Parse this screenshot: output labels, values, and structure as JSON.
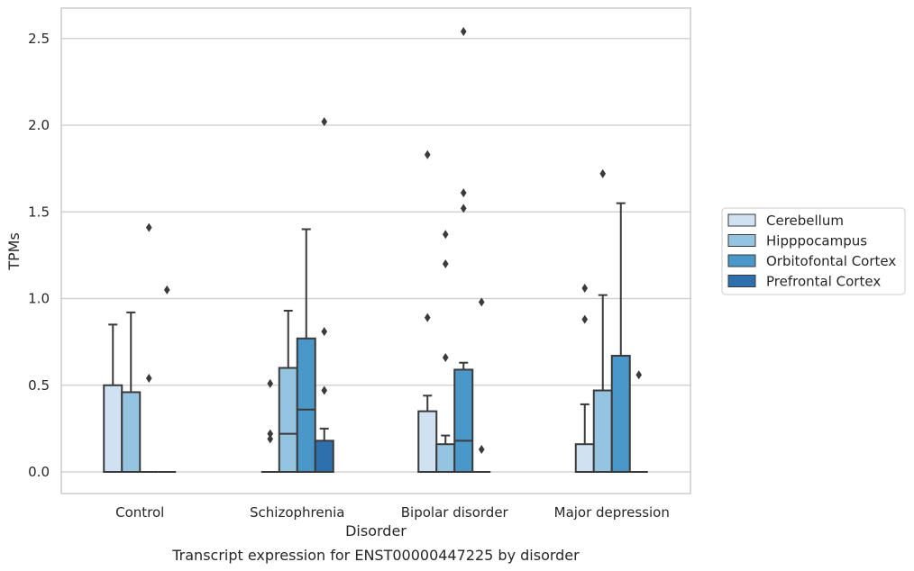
{
  "chart_data": {
    "type": "box",
    "caption": "Transcript expression for ENST00000447225 by disorder",
    "xlabel": "Disorder",
    "ylabel": "TPMs",
    "ylim": [
      -0.12,
      2.67
    ],
    "yticks": [
      0.0,
      0.5,
      1.0,
      1.5,
      2.0,
      2.5
    ],
    "ytick_labels": [
      "0.0",
      "0.5",
      "1.0",
      "1.5",
      "2.0",
      "2.5"
    ],
    "categories": [
      "Control",
      "Schizophrenia",
      "Bipolar disorder",
      "Major depression"
    ],
    "grid": "y",
    "legend_position": "right",
    "colors": {
      "Cerebellum": "#d0e1f2",
      "Hipppocampus": "#94c4df",
      "Orbitofontal Cortex": "#4a98c9",
      "Prefrontal Cortex": "#2e6fae",
      "line": "#3a3a3a",
      "grid": "#cccccc"
    },
    "series": [
      {
        "name": "Cerebellum",
        "boxes": [
          {
            "q1": 0.0,
            "median": 0.0,
            "q3": 0.5,
            "whislo": 0.0,
            "whishi": 0.85,
            "fliers": []
          },
          {
            "q1": 0.0,
            "median": 0.0,
            "q3": 0.0,
            "whislo": 0.0,
            "whishi": 0.0,
            "fliers": [
              0.51,
              0.22,
              0.19
            ]
          },
          {
            "q1": 0.0,
            "median": 0.0,
            "q3": 0.35,
            "whislo": 0.0,
            "whishi": 0.44,
            "fliers": [
              1.83,
              0.89
            ]
          },
          {
            "q1": 0.0,
            "median": 0.0,
            "q3": 0.16,
            "whislo": 0.0,
            "whishi": 0.39,
            "fliers": [
              1.06,
              0.88
            ]
          }
        ]
      },
      {
        "name": "Hipppocampus",
        "boxes": [
          {
            "q1": 0.0,
            "median": 0.0,
            "q3": 0.46,
            "whislo": 0.0,
            "whishi": 0.92,
            "fliers": []
          },
          {
            "q1": 0.0,
            "median": 0.22,
            "q3": 0.6,
            "whislo": 0.0,
            "whishi": 0.93,
            "fliers": []
          },
          {
            "q1": 0.0,
            "median": 0.0,
            "q3": 0.16,
            "whislo": 0.0,
            "whishi": 0.21,
            "fliers": [
              1.37,
              1.2,
              0.66
            ]
          },
          {
            "q1": 0.0,
            "median": 0.0,
            "q3": 0.47,
            "whislo": 0.0,
            "whishi": 1.02,
            "fliers": [
              1.72
            ]
          }
        ]
      },
      {
        "name": "Orbitofontal Cortex",
        "boxes": [
          {
            "q1": 0.0,
            "median": 0.0,
            "q3": 0.0,
            "whislo": 0.0,
            "whishi": 0.0,
            "fliers": [
              1.41,
              0.54
            ]
          },
          {
            "q1": 0.0,
            "median": 0.36,
            "q3": 0.77,
            "whislo": 0.0,
            "whishi": 1.4,
            "fliers": []
          },
          {
            "q1": 0.0,
            "median": 0.18,
            "q3": 0.59,
            "whislo": 0.0,
            "whishi": 0.63,
            "fliers": [
              2.54,
              1.61,
              1.52
            ]
          },
          {
            "q1": 0.0,
            "median": 0.0,
            "q3": 0.67,
            "whislo": 0.0,
            "whishi": 1.55,
            "fliers": []
          }
        ]
      },
      {
        "name": "Prefrontal Cortex",
        "boxes": [
          {
            "q1": 0.0,
            "median": 0.0,
            "q3": 0.0,
            "whislo": 0.0,
            "whishi": 0.0,
            "fliers": [
              1.05
            ]
          },
          {
            "q1": 0.0,
            "median": 0.0,
            "q3": 0.18,
            "whislo": 0.0,
            "whishi": 0.25,
            "fliers": [
              2.02,
              0.81,
              0.47
            ]
          },
          {
            "q1": 0.0,
            "median": 0.0,
            "q3": 0.0,
            "whislo": 0.0,
            "whishi": 0.0,
            "fliers": [
              0.98,
              0.13
            ]
          },
          {
            "q1": 0.0,
            "median": 0.0,
            "q3": 0.0,
            "whislo": 0.0,
            "whishi": 0.0,
            "fliers": [
              0.56
            ]
          }
        ]
      }
    ]
  }
}
